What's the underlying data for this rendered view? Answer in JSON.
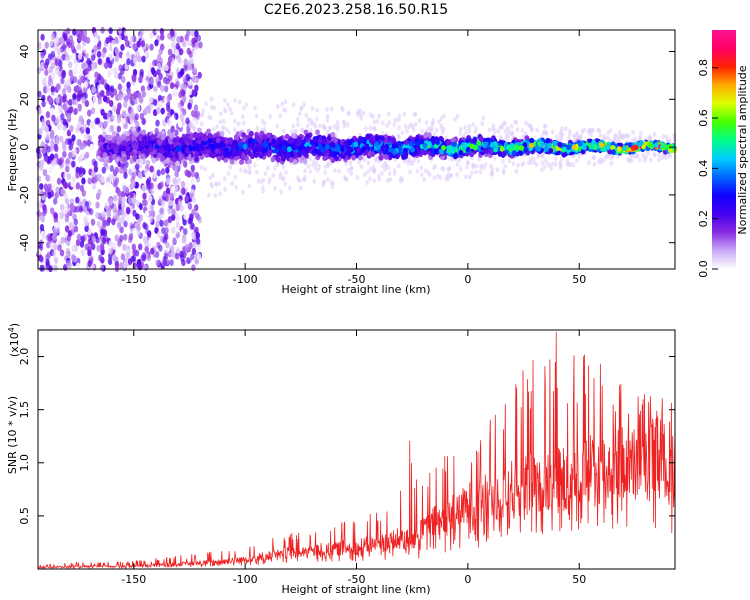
{
  "colors": {
    "background": "#ffffff",
    "snr_line": "#ee2222",
    "colormap": [
      "#ffffff",
      "#c9a8f5",
      "#8a2be2",
      "#4400ee",
      "#1100ff",
      "#0066ff",
      "#00ccff",
      "#00ff88",
      "#44ff00",
      "#ddff00",
      "#ffaa00",
      "#ff2200",
      "#ff0066",
      "#ff1493"
    ]
  },
  "chart_data": [
    {
      "type": "heatmap",
      "title": "C2E6.2023.258.16.50.R15",
      "xlabel": "Height of straight line (km)",
      "ylabel": "Frequency (Hz)",
      "xlim": [
        -193,
        93
      ],
      "ylim": [
        -51,
        49
      ],
      "xticks": [
        -150,
        -100,
        -50,
        0,
        50
      ],
      "yticks": [
        -40,
        -20,
        0,
        20,
        40
      ],
      "colorbar": {
        "label": "Normalized spectral amplitude",
        "range": [
          0.0,
          0.95
        ],
        "ticks": [
          "0.0",
          "0.2",
          "0.4",
          "0.6",
          "0.8"
        ]
      },
      "description_values": {
        "noise_region_x": [
          -193,
          -120
        ],
        "signal_center_frequency_hz": 0,
        "signal_band_halfwidth_hz": [
          [
            -160,
            8
          ],
          [
            -100,
            8
          ],
          [
            -50,
            6
          ],
          [
            0,
            5
          ],
          [
            50,
            3
          ],
          [
            93,
            2
          ]
        ],
        "peak_amplitude_by_x": [
          [
            -160,
            0.25
          ],
          [
            -100,
            0.35
          ],
          [
            -50,
            0.45
          ],
          [
            0,
            0.55
          ],
          [
            50,
            0.75
          ],
          [
            93,
            0.9
          ]
        ]
      }
    },
    {
      "type": "line",
      "xlabel": "Height of straight line (km)",
      "ylabel": "SNR (10 * v/v)",
      "scale_label": "(x10",
      "scale_exp": "4",
      "xlim": [
        -193,
        93
      ],
      "ylim": [
        0,
        22500
      ],
      "xticks": [
        -150,
        -100,
        -50,
        0,
        50
      ],
      "yticks": [
        {
          "value": 5000,
          "label": "0.5"
        },
        {
          "value": 10000,
          "label": "1.0"
        },
        {
          "value": 15000,
          "label": "1.5"
        },
        {
          "value": 20000,
          "label": "2.0"
        }
      ],
      "envelope": {
        "x": [
          -193,
          -150,
          -120,
          -100,
          -80,
          -60,
          -40,
          -25,
          -22,
          -20,
          -10,
          0,
          10,
          20,
          30,
          40,
          50,
          60,
          70,
          80,
          93
        ],
        "mean": [
          200,
          300,
          600,
          1000,
          1600,
          2000,
          2500,
          3300,
          3000,
          4200,
          5000,
          6500,
          7000,
          8000,
          8500,
          9000,
          9500,
          10000,
          10500,
          10500,
          11000
        ],
        "peak": [
          500,
          800,
          1500,
          2200,
          3500,
          4400,
          5500,
          14500,
          7000,
          9000,
          11500,
          13000,
          16000,
          19000,
          20500,
          23000,
          20500,
          20000,
          18500,
          16500,
          16000
        ]
      }
    }
  ]
}
